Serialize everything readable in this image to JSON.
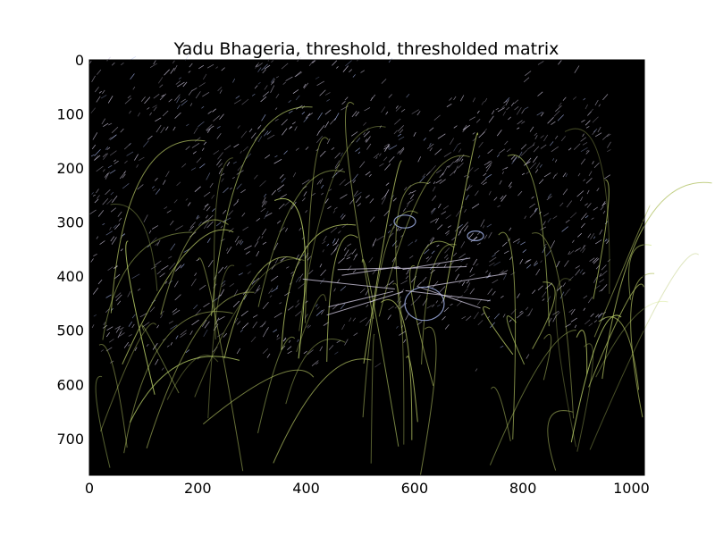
{
  "chart_data": {
    "type": "heatmap",
    "title": "Yadu Bhageria, threshold, thresholded matrix",
    "xlabel": "",
    "ylabel": "",
    "x_ticks": [
      0,
      200,
      400,
      600,
      800,
      1000
    ],
    "y_ticks": [
      0,
      100,
      200,
      300,
      400,
      500,
      600,
      700
    ],
    "xlim": [
      0,
      1024
    ],
    "ylim": [
      768,
      0
    ],
    "grid": false,
    "image": {
      "description_kind": "edge-thresholded photo (raccoon)",
      "background_color": "#000000",
      "edge_colors": [
        "#d8d0e8",
        "#b0c060",
        "#a8b8f0",
        "#e0a0a0",
        "#c8e070"
      ]
    }
  }
}
